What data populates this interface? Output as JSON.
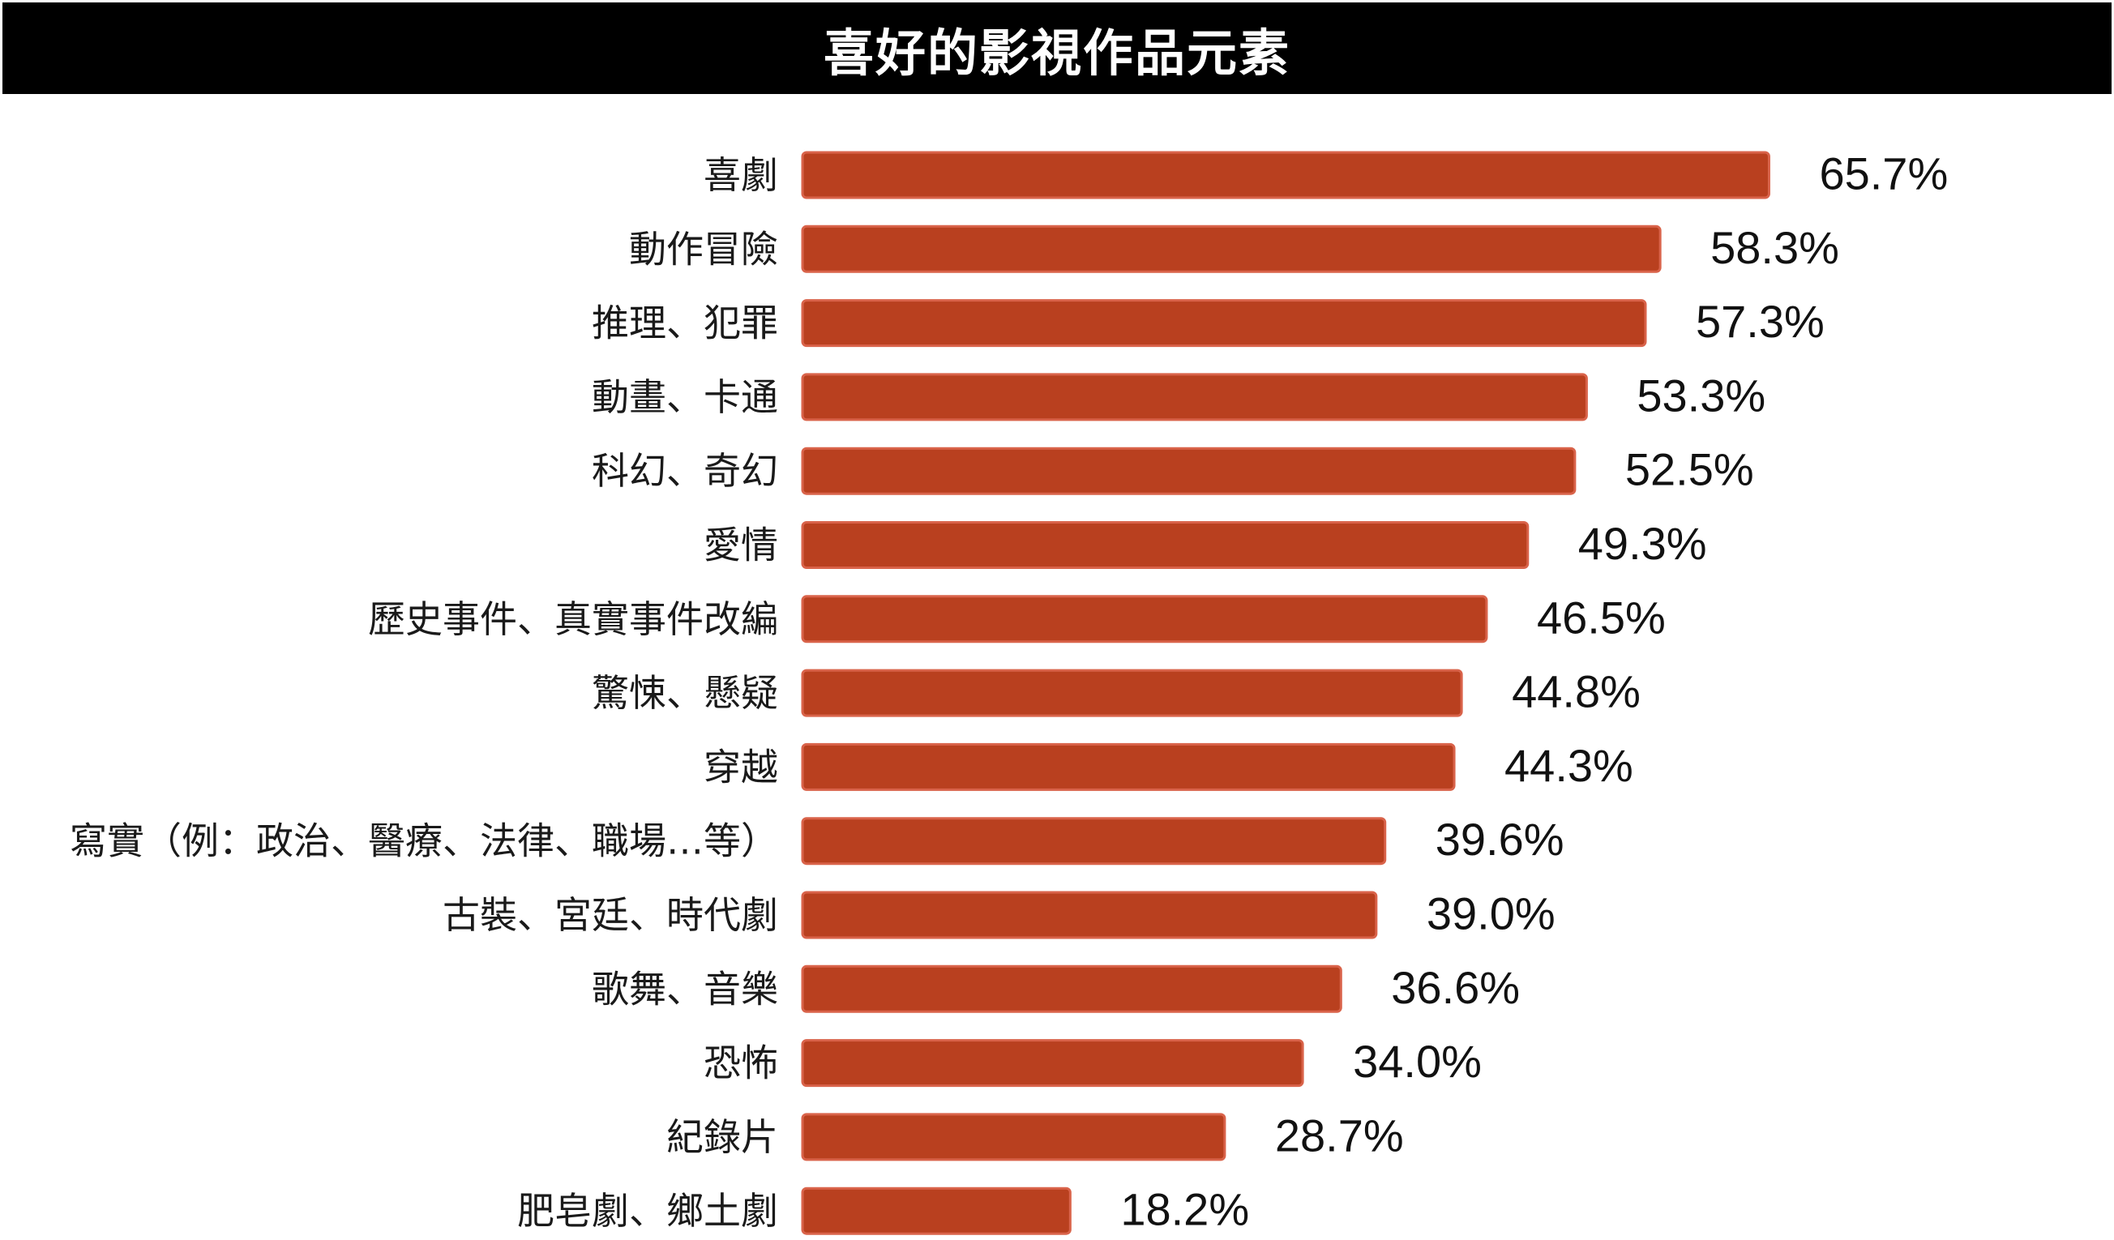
{
  "chart_data": {
    "type": "bar",
    "orientation": "horizontal",
    "title": "喜好的影視作品元素",
    "categories": [
      "喜劇",
      "動作冒險",
      "推理、犯罪",
      "動畫、卡通",
      "科幻、奇幻",
      "愛情",
      "歷史事件、真實事件改編",
      "驚悚、懸疑",
      "穿越",
      "寫實（例：政治、醫療、法律、職場…等）",
      "古裝、宮廷、時代劇",
      "歌舞、音樂",
      "恐怖",
      "紀錄片",
      "肥皂劇、鄉土劇"
    ],
    "values": [
      65.7,
      58.3,
      57.3,
      53.3,
      52.5,
      49.3,
      46.5,
      44.8,
      44.3,
      39.6,
      39.0,
      36.6,
      34.0,
      28.7,
      18.2
    ],
    "value_labels": [
      "65.7%",
      "58.3%",
      "57.3%",
      "53.3%",
      "52.5%",
      "49.3%",
      "46.5%",
      "44.8%",
      "44.3%",
      "39.6%",
      "39.0%",
      "36.6%",
      "34.0%",
      "28.7%",
      "18.2%"
    ],
    "unit": "%",
    "xlim": [
      0,
      100
    ],
    "grid": false,
    "legend": "none",
    "bar_color": "#b9401f",
    "bar_edge_color": "#d9634a",
    "title_bg_color": "#000000",
    "title_text_color": "#ffffff"
  }
}
